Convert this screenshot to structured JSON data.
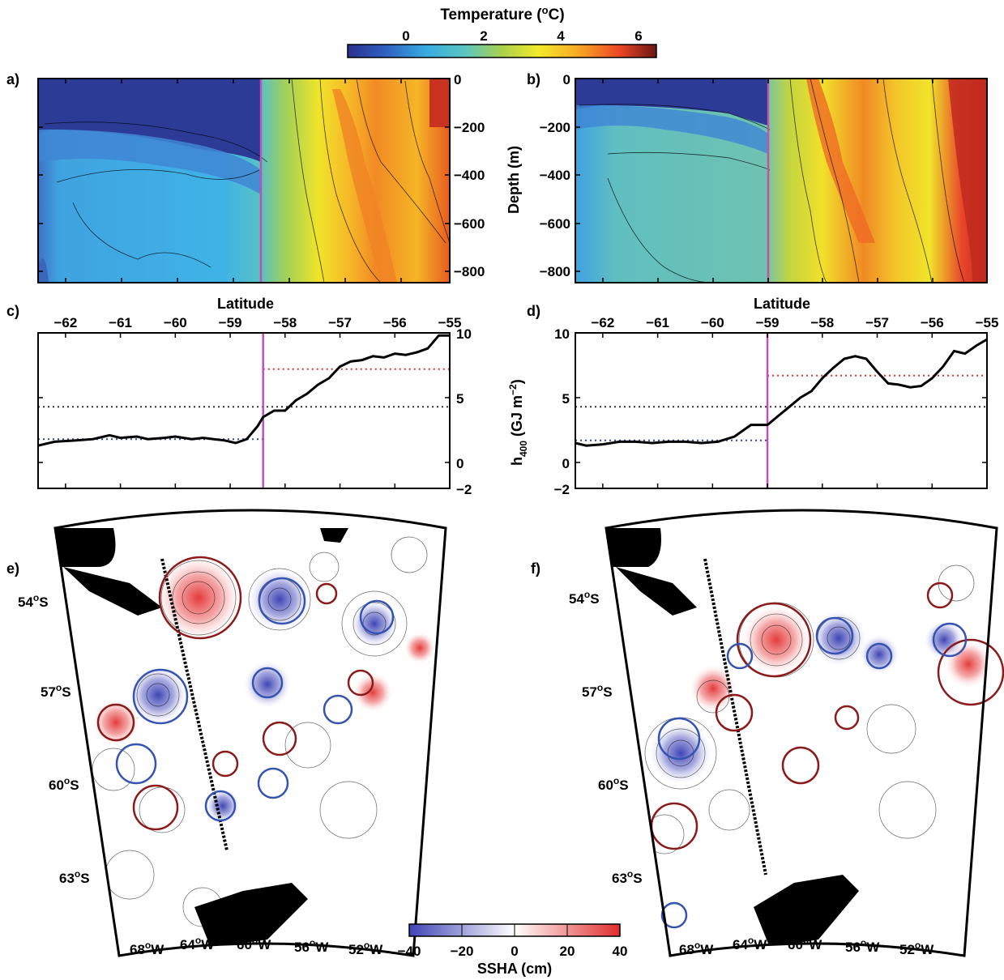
{
  "colorbar_top": {
    "title_main": "Temperature (",
    "title_sup": "o",
    "title_end": "C)",
    "ticks": [
      "0",
      "2",
      "4",
      "6"
    ]
  },
  "panels": {
    "a": "a)",
    "b": "b)",
    "c": "c)",
    "d": "d)",
    "e": "e)",
    "f": "f)"
  },
  "axes": {
    "depth_label": "Depth (m)",
    "depth_ticks": [
      "0",
      "−200",
      "−400",
      "−600",
      "−800"
    ],
    "latitude_label": "Latitude",
    "lat_ticks": [
      "−62",
      "−61",
      "−60",
      "−59",
      "−58",
      "−57",
      "−56",
      "−55"
    ],
    "h_ticks": [
      "10",
      "5",
      "0",
      "−2"
    ],
    "h_label_main": "h",
    "h_label_sub": "400",
    "h_label_units": " (GJ m",
    "h_label_sup": "−2",
    "h_label_close": ")",
    "map_lat_ticks": [
      "54",
      "57",
      "60",
      "63"
    ],
    "map_lon_ticks": [
      "68",
      "64",
      "60",
      "56",
      "52"
    ],
    "deg": "o",
    "S": "S",
    "W": "W"
  },
  "colorbar_bottom": {
    "title": "SSHA (cm)",
    "ticks": [
      "−40",
      "−20",
      "0",
      "20",
      "40"
    ]
  },
  "colors": {
    "transect_line": "#c34fb8",
    "mean_warm": "#d9362b",
    "mean_all": "#333333",
    "mean_cold": "#2d4aa8",
    "eddy_warm": "#8b1a1a",
    "eddy_cold": "#3553b0"
  },
  "chart_data": [
    {
      "type": "heatmap",
      "panel": "a",
      "x": "latitude",
      "xlim": [
        -62.5,
        -55
      ],
      "ylabel": "Depth (m)",
      "ylim": [
        -850,
        0
      ],
      "front_latitude": -58.4,
      "temperature_profile_surface": [
        [
          -62.5,
          -1.0
        ],
        [
          -59.0,
          -0.5
        ],
        [
          -58.4,
          2.5
        ],
        [
          -57.0,
          3.5
        ],
        [
          -56.5,
          4.5
        ],
        [
          -55.2,
          6.5
        ]
      ],
      "temperature_profile_400m": [
        [
          -62.5,
          1.5
        ],
        [
          -59.0,
          1.5
        ],
        [
          -58.4,
          2.6
        ],
        [
          -57.0,
          4.0
        ],
        [
          -56.3,
          4.5
        ],
        [
          -55.0,
          4.0
        ]
      ]
    },
    {
      "type": "heatmap",
      "panel": "b",
      "x": "latitude",
      "xlim": [
        -62.5,
        -55
      ],
      "ylabel": "Depth (m)",
      "ylim": [
        -850,
        0
      ],
      "front_latitude": -59.0,
      "temperature_profile_surface": [
        [
          -62.5,
          -1.0
        ],
        [
          -59.5,
          -0.5
        ],
        [
          -59.0,
          2.8
        ],
        [
          -57.5,
          5.0
        ],
        [
          -56.5,
          3.5
        ],
        [
          -55.2,
          6.5
        ]
      ],
      "temperature_profile_400m": [
        [
          -62.5,
          2.0
        ],
        [
          -59.0,
          2.5
        ],
        [
          -57.8,
          3.5
        ],
        [
          -57.3,
          5.0
        ],
        [
          -56.0,
          4.0
        ],
        [
          -55.3,
          5.5
        ]
      ]
    },
    {
      "type": "line",
      "panel": "c",
      "xlabel": "Latitude",
      "ylabel": "h400 (GJ m-2)",
      "xlim": [
        -62.5,
        -55
      ],
      "ylim": [
        -2,
        10
      ],
      "front_latitude": -58.4,
      "mean_north": 7.2,
      "mean_all": 4.3,
      "mean_south": 1.8,
      "x": [
        -62.5,
        -62.2,
        -61.8,
        -61.5,
        -61.2,
        -61.0,
        -60.7,
        -60.5,
        -60.2,
        -60.0,
        -59.7,
        -59.5,
        -59.3,
        -59.1,
        -58.9,
        -58.7,
        -58.5,
        -58.4,
        -58.2,
        -58.0,
        -57.8,
        -57.6,
        -57.4,
        -57.2,
        -57.0,
        -56.8,
        -56.6,
        -56.4,
        -56.2,
        -56.0,
        -55.8,
        -55.6,
        -55.4,
        -55.2,
        -55.0
      ],
      "values": [
        1.3,
        1.6,
        1.7,
        1.8,
        2.1,
        1.9,
        2.0,
        1.8,
        1.9,
        2.0,
        1.8,
        1.9,
        1.8,
        1.7,
        1.5,
        1.8,
        2.8,
        3.5,
        4.0,
        4.0,
        4.8,
        5.3,
        6.0,
        6.5,
        7.4,
        7.8,
        7.9,
        8.2,
        8.1,
        8.4,
        8.3,
        8.5,
        8.8,
        9.8,
        9.8
      ]
    },
    {
      "type": "line",
      "panel": "d",
      "xlabel": "Latitude",
      "ylabel": "h400 (GJ m-2)",
      "xlim": [
        -62.5,
        -55
      ],
      "ylim": [
        -2,
        10
      ],
      "front_latitude": -59.0,
      "mean_north": 6.7,
      "mean_all": 4.3,
      "mean_south": 1.7,
      "x": [
        -62.5,
        -62.3,
        -62.0,
        -61.7,
        -61.4,
        -61.1,
        -60.8,
        -60.5,
        -60.2,
        -59.9,
        -59.6,
        -59.3,
        -59.0,
        -58.8,
        -58.6,
        -58.4,
        -58.2,
        -58.0,
        -57.8,
        -57.6,
        -57.4,
        -57.2,
        -57.0,
        -56.8,
        -56.6,
        -56.4,
        -56.2,
        -56.0,
        -55.8,
        -55.6,
        -55.4,
        -55.2,
        -55.0
      ],
      "values": [
        1.5,
        1.3,
        1.4,
        1.6,
        1.6,
        1.5,
        1.6,
        1.6,
        1.5,
        1.6,
        2.0,
        2.9,
        2.9,
        3.6,
        4.3,
        5.0,
        5.5,
        6.5,
        7.3,
        8.0,
        8.2,
        8.0,
        7.0,
        6.1,
        6.0,
        5.8,
        5.9,
        6.5,
        7.4,
        8.6,
        8.4,
        9.0,
        9.5
      ]
    },
    {
      "type": "heatmap",
      "panel": "e",
      "quantity": "SSHA (cm)",
      "range": [
        -40,
        40
      ],
      "lat_ticks": [
        -54,
        -57,
        -60,
        -63
      ],
      "lon_ticks": [
        -68,
        -64,
        -60,
        -56,
        -52
      ]
    },
    {
      "type": "heatmap",
      "panel": "f",
      "quantity": "SSHA (cm)",
      "range": [
        -40,
        40
      ],
      "lat_ticks": [
        -54,
        -57,
        -60,
        -63
      ],
      "lon_ticks": [
        -68,
        -64,
        -60,
        -56,
        -52
      ]
    }
  ]
}
